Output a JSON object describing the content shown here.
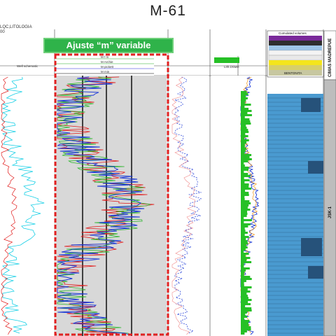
{
  "title": "M-61",
  "top_left": {
    "line1": "LQC,LITOLOGIA",
    "line2": "00"
  },
  "badge": "Ajuste “m” variable",
  "track1_header": {
    "label1": "Well schematic"
  },
  "track3_header": {
    "rows": [
      "M f m",
      "M Archie",
      "M pickett",
      "M min"
    ]
  },
  "track6_header": {
    "label": "Lith.Drawn"
  },
  "formation_labels": {
    "upper": "CIMAS MADREPUE",
    "lower": "JSK-1"
  },
  "lith_legend": {
    "items": [
      "Cumulated volumes",
      "BENTONITA"
    ]
  },
  "colors": {
    "accent_green": "#2fb34a",
    "dashed_red": "#e02020",
    "limestone": "#4a9ad0",
    "shale_dark": "#26527a",
    "gamma_cyan": "#18d0e6",
    "resist_red": "#e11a1a",
    "resist_green": "#2bb52b",
    "resist_blue": "#1836d6",
    "lith_green": "#26c026",
    "orange_curve": "#f59a1a"
  }
}
